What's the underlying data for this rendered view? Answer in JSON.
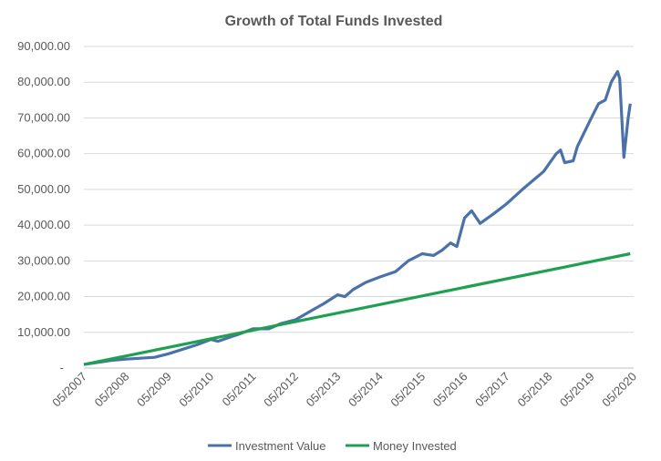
{
  "chart_data": {
    "type": "line",
    "title": "Growth of Total Funds Invested",
    "xlabel": "",
    "ylabel": "",
    "ylim": [
      0,
      90000
    ],
    "xlim": [
      2007.33,
      2020.33
    ],
    "grid": true,
    "legend_position": "bottom",
    "y_ticks": [
      "-",
      "10,000.00",
      "20,000.00",
      "30,000.00",
      "40,000.00",
      "50,000.00",
      "60,000.00",
      "70,000.00",
      "80,000.00",
      "90,000.00"
    ],
    "x_ticks": [
      "05/2007",
      "05/2008",
      "05/2009",
      "05/2010",
      "05/2011",
      "05/2012",
      "05/2013",
      "05/2014",
      "05/2015",
      "05/2016",
      "05/2017",
      "05/2018",
      "05/2019",
      "05/2020"
    ],
    "series": [
      {
        "name": "Investment Value",
        "color": "#4a72a8",
        "x": [
          2007.33,
          2008.0,
          2008.33,
          2009.0,
          2009.33,
          2010.0,
          2010.33,
          2010.5,
          2011.0,
          2011.33,
          2011.7,
          2012.0,
          2012.33,
          2012.7,
          2013.0,
          2013.33,
          2013.5,
          2013.7,
          2014.0,
          2014.33,
          2014.7,
          2015.0,
          2015.33,
          2015.6,
          2015.8,
          2016.0,
          2016.15,
          2016.33,
          2016.5,
          2016.7,
          2017.0,
          2017.33,
          2017.7,
          2018.0,
          2018.2,
          2018.5,
          2018.6,
          2018.7,
          2018.9,
          2019.0,
          2019.33,
          2019.5,
          2019.66,
          2019.8,
          2019.95,
          2020.0,
          2020.1,
          2020.2,
          2020.25
        ],
        "values": [
          1000,
          2200,
          2500,
          3000,
          4000,
          6500,
          8000,
          7500,
          9500,
          11000,
          11000,
          12500,
          13500,
          16000,
          18000,
          20500,
          20000,
          22000,
          24000,
          25500,
          27000,
          30000,
          32000,
          31500,
          33000,
          35000,
          34000,
          42000,
          44000,
          40500,
          43000,
          46000,
          50000,
          53000,
          55000,
          60000,
          61000,
          57500,
          58000,
          62000,
          70000,
          74000,
          75000,
          80000,
          83000,
          81000,
          59000,
          70000,
          74000
        ]
      },
      {
        "name": "Money Invested",
        "color": "#1fa050",
        "x": [
          2007.33,
          2020.25
        ],
        "values": [
          1000,
          32000
        ]
      }
    ]
  }
}
